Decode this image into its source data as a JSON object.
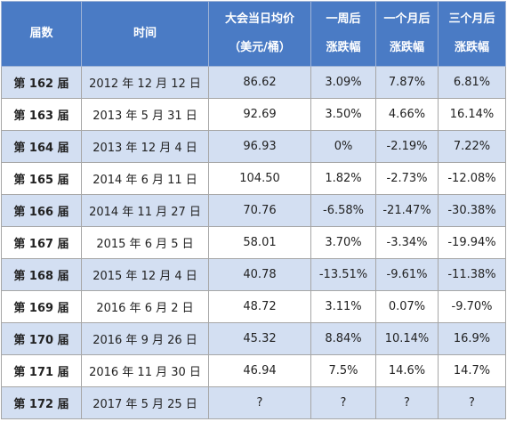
{
  "table": {
    "header": [
      [
        "届数"
      ],
      [
        "时间"
      ],
      [
        "大会当日均价",
        "（美元/桶）"
      ],
      [
        "一周后",
        "涨跌幅"
      ],
      [
        "一个月后",
        "涨跌幅"
      ],
      [
        "三个月后",
        "涨跌幅"
      ]
    ],
    "rows": [
      [
        "第 162 届",
        "2012 年 12 月 12 日",
        "86.62",
        "3.09%",
        "7.87%",
        "6.81%"
      ],
      [
        "第 163 届",
        "2013 年 5 月 31 日",
        "92.69",
        "3.50%",
        "4.66%",
        "16.14%"
      ],
      [
        "第 164 届",
        "2013 年 12 月 4 日",
        "96.93",
        "0%",
        "-2.19%",
        "7.22%"
      ],
      [
        "第 165 届",
        "2014 年 6 月 11 日",
        "104.50",
        "1.82%",
        "-2.73%",
        "-12.08%"
      ],
      [
        "第 166 届",
        "2014 年 11 月 27 日",
        "70.76",
        "-6.58%",
        "-21.47%",
        "-30.38%"
      ],
      [
        "第 167 届",
        "2015 年 6 月 5 日",
        "58.01",
        "3.70%",
        "-3.34%",
        "-19.94%"
      ],
      [
        "第 168 届",
        "2015 年 12 月 4 日",
        "40.78",
        "-13.51%",
        "-9.61%",
        "-11.38%"
      ],
      [
        "第 169 届",
        "2016 年 6 月 2 日",
        "48.72",
        "3.11%",
        "0.07%",
        "-9.70%"
      ],
      [
        "第 170 届",
        "2016 年 9 月 26 日",
        "45.32",
        "8.84%",
        "10.14%",
        "16.9%"
      ],
      [
        "第 171 届",
        "2016 年 11 月 30 日",
        "46.94",
        "7.5%",
        "14.6%",
        "14.7%"
      ],
      [
        "第 172 届",
        "2017 年 5 月 25 日",
        "?",
        "?",
        "?",
        "?"
      ]
    ]
  }
}
